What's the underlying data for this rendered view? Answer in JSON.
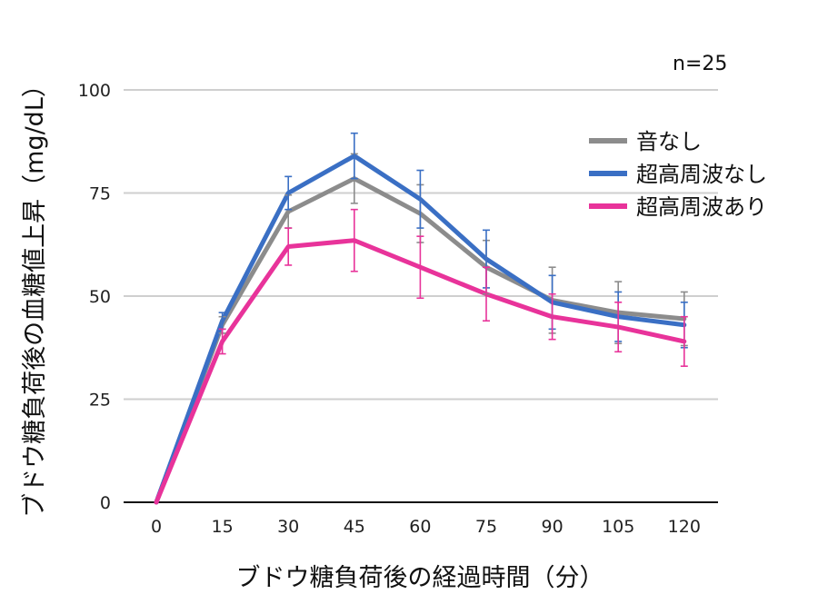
{
  "chart_data": {
    "type": "line",
    "x": [
      0,
      15,
      30,
      45,
      60,
      75,
      90,
      105,
      120
    ],
    "xlabel": "ブドウ糖負荷後の経過時間（分）",
    "ylabel": "ブドウ糖負荷後の血糖値上昇（mg/dL）",
    "ylim": [
      0,
      100
    ],
    "yticks": [
      0,
      25,
      50,
      75,
      100
    ],
    "grid": true,
    "legend_position": "right",
    "annotation": "n=25",
    "series": [
      {
        "name": "音なし",
        "color": "#8c8c8c",
        "values": [
          0,
          43,
          70.5,
          78.5,
          70,
          57,
          49,
          46,
          44.5
        ],
        "errors": [
          0,
          2,
          4,
          6,
          7,
          6.5,
          8,
          7.5,
          6.5
        ]
      },
      {
        "name": "超高周波なし",
        "color": "#3a6fc4",
        "values": [
          0,
          44,
          75,
          84,
          73.5,
          59,
          48.5,
          45,
          43
        ],
        "errors": [
          0,
          2,
          4,
          5.5,
          7,
          7,
          6.5,
          6,
          5.5
        ]
      },
      {
        "name": "超高周波あり",
        "color": "#e8339a",
        "values": [
          0,
          39,
          62,
          63.5,
          57,
          50.5,
          45,
          42.5,
          39
        ],
        "errors": [
          0,
          3,
          4.5,
          7.5,
          7.5,
          6.5,
          5.5,
          6,
          6
        ]
      }
    ]
  }
}
